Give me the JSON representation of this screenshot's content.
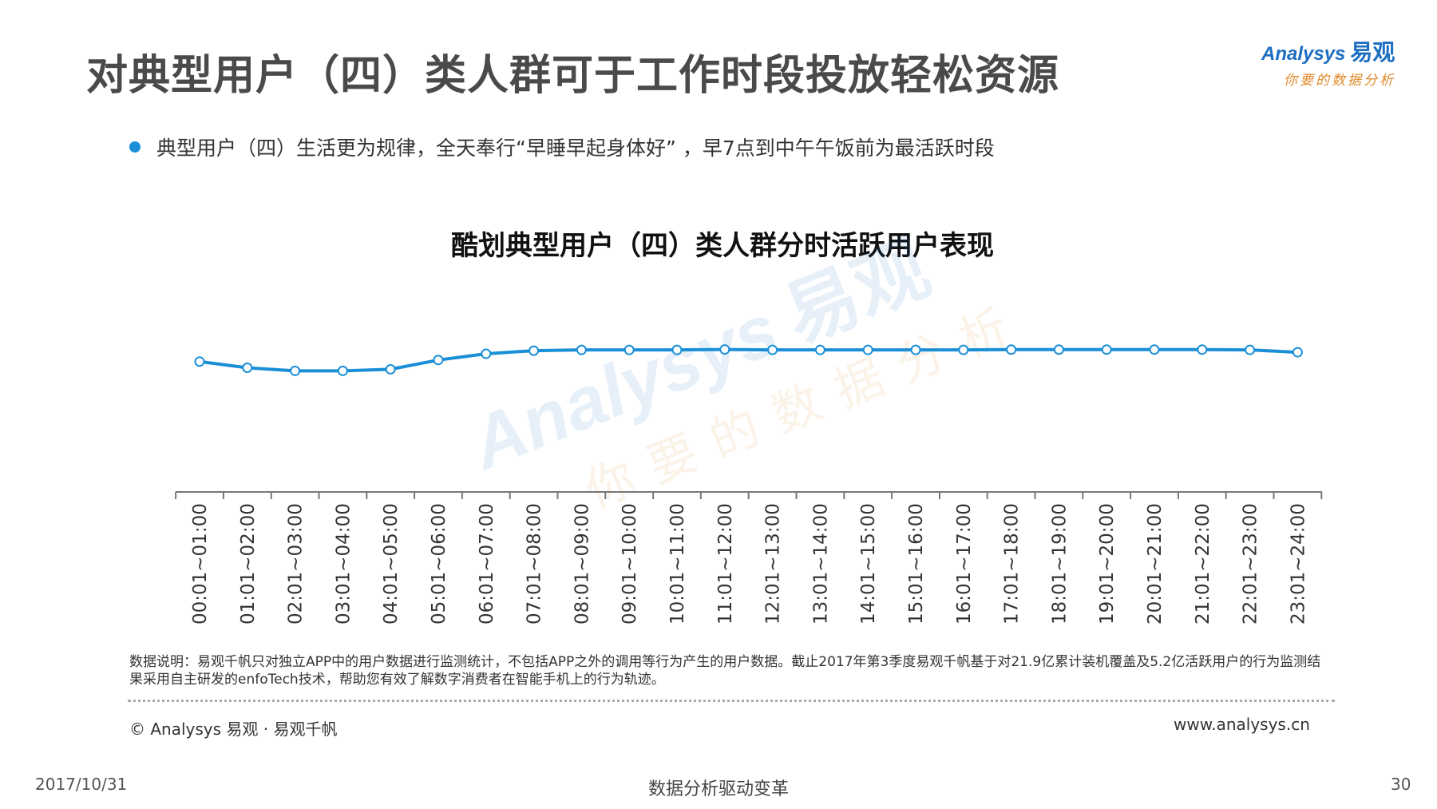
{
  "header": {
    "title": "对典型用户（四）类人群可于工作时段投放轻松资源",
    "logo_text": "Analysys",
    "logo_cn": "易观",
    "logo_sub": "你要的数据分析"
  },
  "bullet": {
    "text": "典型用户（四）生活更为规律，全天奉行“早睡早起身体好” ，早7点到中午午饭前为最活跃时段"
  },
  "watermark": {
    "text": "Analysys",
    "cn": "易观",
    "sub": "你要的数据分析"
  },
  "chart_data": {
    "type": "line",
    "title": "酷划典型用户（四）类人群分时活跃用户表现",
    "categories": [
      "00:01~01:00",
      "01:01~02:00",
      "02:01~03:00",
      "03:01~04:00",
      "04:01~05:00",
      "05:01~06:00",
      "06:01~07:00",
      "07:01~08:00",
      "08:01~09:00",
      "09:01~10:00",
      "10:01~11:00",
      "11:01~12:00",
      "12:01~13:00",
      "13:01~14:00",
      "14:01~15:00",
      "15:01~16:00",
      "16:01~17:00",
      "17:01~18:00",
      "18:01~19:00",
      "19:01~20:00",
      "20:01~21:00",
      "21:01~22:00",
      "22:01~23:00",
      "23:01~24:00"
    ],
    "values": [
      0.84,
      0.8,
      0.78,
      0.78,
      0.79,
      0.85,
      0.89,
      0.91,
      0.915,
      0.915,
      0.915,
      0.918,
      0.915,
      0.915,
      0.915,
      0.915,
      0.915,
      0.917,
      0.917,
      0.917,
      0.917,
      0.917,
      0.915,
      0.9
    ],
    "xlabel": "",
    "ylabel": "",
    "ylim": [
      0,
      1.6
    ],
    "y_axis_visible": false,
    "grid": false,
    "colors": {
      "line": "#1a8fd8",
      "marker_fill": "#ffffff",
      "axis": "#777777"
    }
  },
  "footer": {
    "note": "数据说明：易观千帆只对独立APP中的用户数据进行监测统计，不包括APP之外的调用等行为产生的用户数据。截止2017年第3季度易观千帆基于对21.9亿累计装机覆盖及5.2亿活跃用户的行为监测结果采用自主研发的enfoTech技术，帮助您有效了解数字消费者在智能手机上的行为轨迹。",
    "copyright": "© Analysys 易观 · 易观千帆",
    "website": "www.analysys.cn",
    "date": "2017/10/31",
    "center_text": "数据分析驱动变革",
    "page_number": "30"
  }
}
